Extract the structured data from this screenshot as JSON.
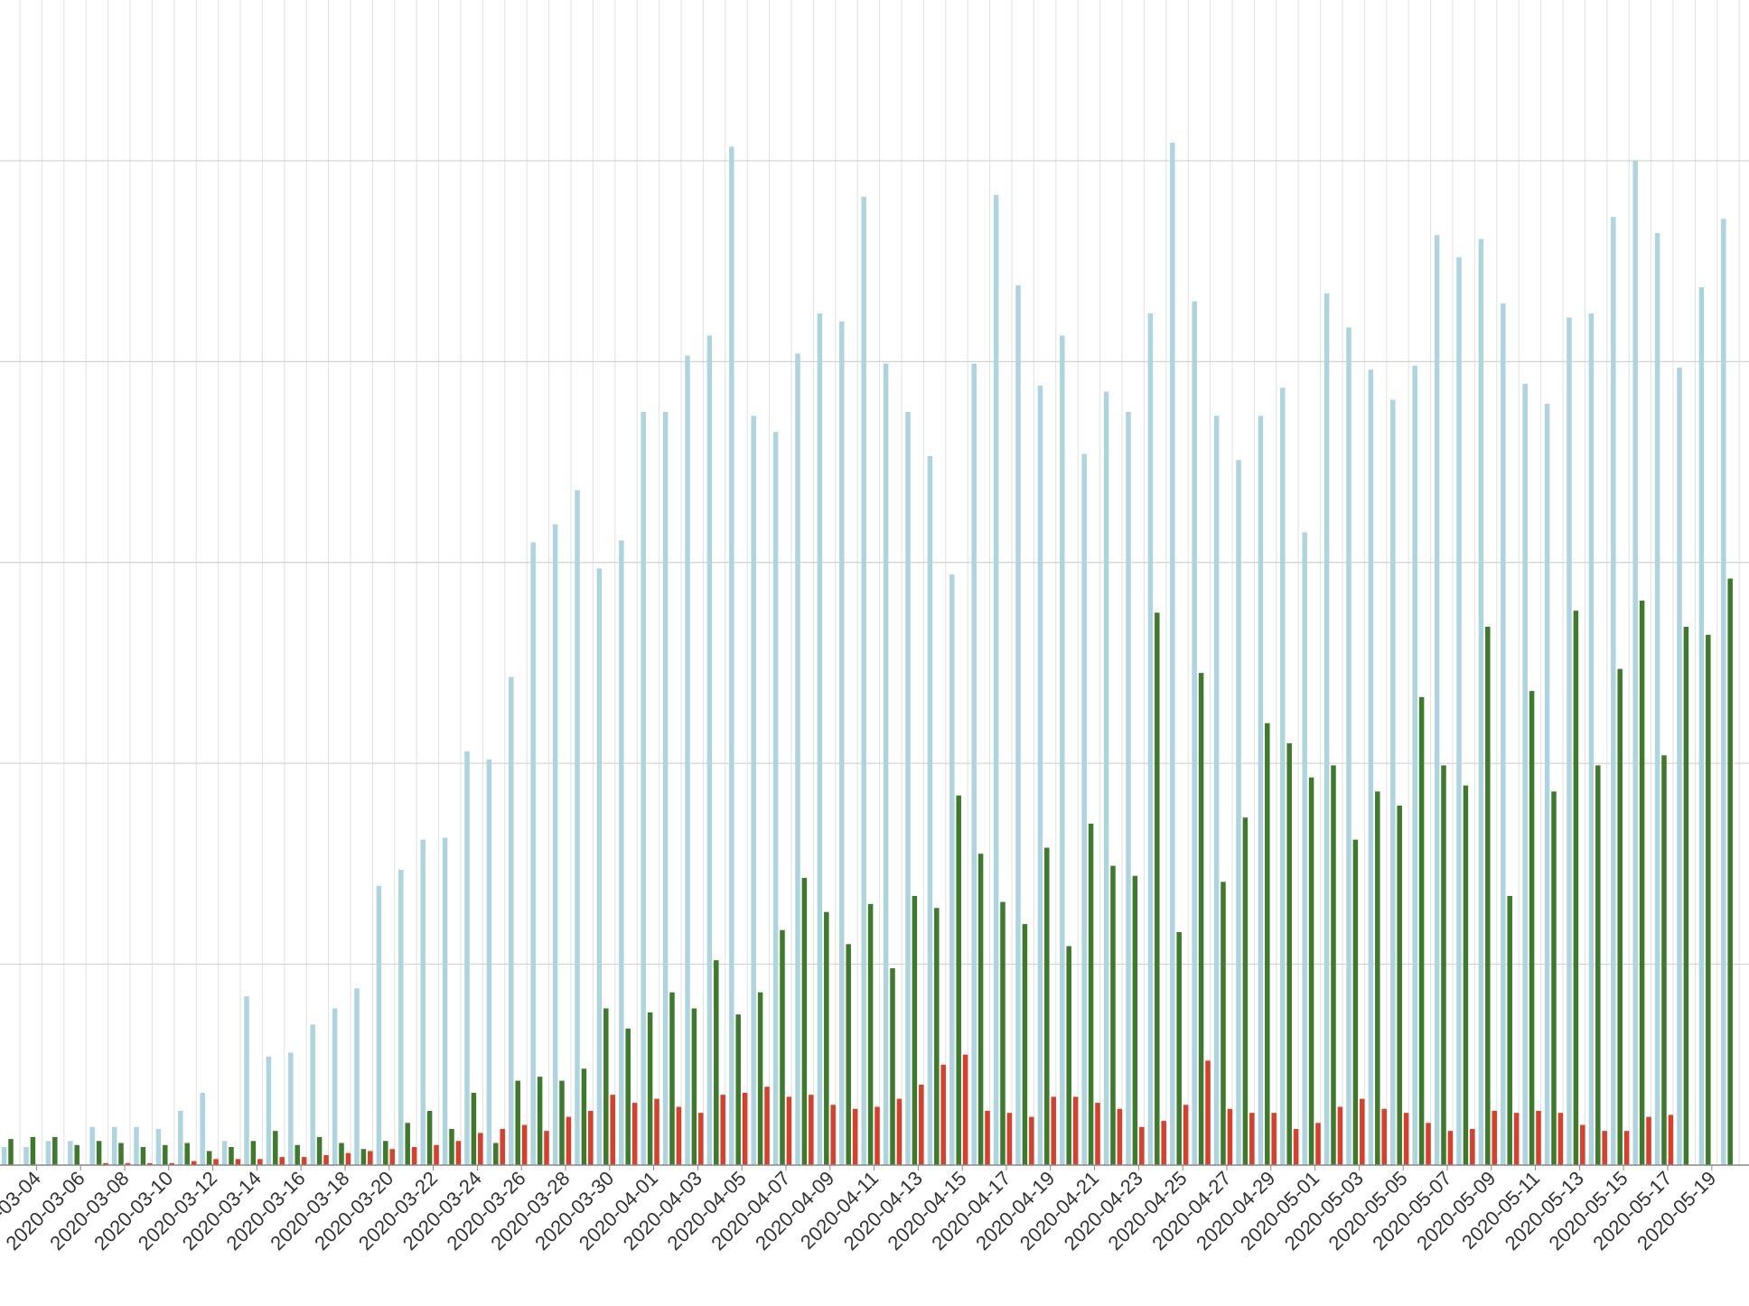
{
  "chart_data": {
    "type": "bar",
    "title": "",
    "xlabel": "",
    "ylabel": "",
    "grid": true,
    "legend": "none",
    "x": [
      "2020-03-03",
      "2020-03-04",
      "2020-03-05",
      "2020-03-06",
      "2020-03-07",
      "2020-03-08",
      "2020-03-09",
      "2020-03-10",
      "2020-03-11",
      "2020-03-12",
      "2020-03-13",
      "2020-03-14",
      "2020-03-15",
      "2020-03-16",
      "2020-03-17",
      "2020-03-18",
      "2020-03-19",
      "2020-03-20",
      "2020-03-21",
      "2020-03-22",
      "2020-03-23",
      "2020-03-24",
      "2020-03-25",
      "2020-03-26",
      "2020-03-27",
      "2020-03-28",
      "2020-03-29",
      "2020-03-30",
      "2020-03-31",
      "2020-04-01",
      "2020-04-02",
      "2020-04-03",
      "2020-04-04",
      "2020-04-05",
      "2020-04-06",
      "2020-04-07",
      "2020-04-08",
      "2020-04-09",
      "2020-04-10",
      "2020-04-11",
      "2020-04-12",
      "2020-04-13",
      "2020-04-14",
      "2020-04-15",
      "2020-04-16",
      "2020-04-17",
      "2020-04-18",
      "2020-04-19",
      "2020-04-20",
      "2020-04-21",
      "2020-04-22",
      "2020-04-23",
      "2020-04-24",
      "2020-04-25",
      "2020-04-26",
      "2020-04-27",
      "2020-04-28",
      "2020-04-29",
      "2020-04-30",
      "2020-05-01",
      "2020-05-02",
      "2020-05-03",
      "2020-05-04",
      "2020-05-05",
      "2020-05-06",
      "2020-05-07",
      "2020-05-08",
      "2020-05-09",
      "2020-05-10",
      "2020-05-11",
      "2020-05-12",
      "2020-05-13",
      "2020-05-14",
      "2020-05-15",
      "2020-05-16",
      "2020-05-17",
      "2020-05-18",
      "2020-05-19",
      "2020-05-20"
    ],
    "x_tick_labels": [
      "2020-03-04",
      "2020-03-06",
      "2020-03-08",
      "2020-03-10",
      "2020-03-12",
      "2020-03-14",
      "2020-03-16",
      "2020-03-18",
      "2020-03-20",
      "2020-03-22",
      "2020-03-24",
      "2020-03-26",
      "2020-03-28",
      "2020-03-30",
      "2020-04-01",
      "2020-04-03",
      "2020-04-05",
      "2020-04-07",
      "2020-04-09",
      "2020-04-11",
      "2020-04-13",
      "2020-04-15",
      "2020-04-17",
      "2020-04-19",
      "2020-04-21",
      "2020-04-23",
      "2020-04-25",
      "2020-04-27",
      "2020-04-29",
      "2020-05-01",
      "2020-05-03",
      "2020-05-05",
      "2020-05-07",
      "2020-05-09",
      "2020-05-11",
      "2020-05-13",
      "2020-05-15",
      "2020-05-17",
      "2020-05-19"
    ],
    "ylim": [
      0,
      5.8
    ],
    "y_gridlines": [
      1,
      2,
      3,
      4,
      5
    ],
    "series": [
      {
        "color": "#aed4e0",
        "values": [
          0.09,
          0.09,
          0.12,
          0.12,
          0.19,
          0.19,
          0.19,
          0.18,
          0.27,
          0.36,
          0.12,
          0.84,
          0.54,
          0.56,
          0.7,
          0.78,
          0.88,
          1.39,
          1.47,
          1.62,
          1.63,
          2.06,
          2.02,
          2.43,
          3.1,
          3.19,
          3.36,
          2.97,
          3.11,
          3.75,
          3.75,
          4.03,
          4.13,
          5.07,
          3.73,
          3.65,
          4.04,
          4.24,
          4.2,
          4.82,
          3.99,
          3.75,
          3.53,
          2.94,
          3.99,
          4.83,
          4.38,
          3.88,
          4.13,
          3.54,
          3.85,
          3.75,
          4.24,
          5.09,
          4.3,
          3.73,
          3.51,
          3.73,
          3.87,
          3.15,
          4.34,
          4.17,
          3.96,
          3.81,
          3.98,
          4.63,
          4.52,
          4.61,
          4.29,
          3.89,
          3.79,
          4.22,
          4.24,
          4.72,
          5.0,
          4.64,
          3.97,
          4.37,
          4.71
        ]
      },
      {
        "color": "#3d7a2a",
        "values": [
          0.13,
          0.14,
          0.14,
          0.1,
          0.12,
          0.11,
          0.09,
          0.1,
          0.11,
          0.07,
          0.09,
          0.12,
          0.17,
          0.1,
          0.14,
          0.11,
          0.08,
          0.12,
          0.21,
          0.27,
          0.18,
          0.36,
          0.11,
          0.42,
          0.44,
          0.42,
          0.48,
          0.78,
          0.68,
          0.76,
          0.86,
          0.78,
          1.02,
          0.75,
          0.86,
          1.17,
          1.43,
          1.26,
          1.1,
          1.3,
          0.98,
          1.34,
          1.28,
          1.84,
          1.55,
          1.31,
          1.2,
          1.58,
          1.09,
          1.7,
          1.49,
          1.44,
          2.75,
          1.16,
          2.45,
          1.41,
          1.73,
          2.2,
          2.1,
          1.93,
          1.99,
          1.62,
          1.86,
          1.79,
          2.33,
          1.99,
          1.89,
          2.68,
          1.34,
          2.36,
          1.86,
          2.76,
          1.99,
          2.47,
          2.81,
          2.04,
          2.68,
          2.64,
          2.92
        ]
      },
      {
        "color": "#d93f2c",
        "values": [
          0.0,
          0.0,
          0.0,
          0.0,
          0.01,
          0.01,
          0.01,
          0.01,
          0.02,
          0.03,
          0.03,
          0.03,
          0.04,
          0.04,
          0.05,
          0.06,
          0.07,
          0.08,
          0.09,
          0.1,
          0.12,
          0.16,
          0.18,
          0.2,
          0.17,
          0.24,
          0.27,
          0.35,
          0.31,
          0.33,
          0.29,
          0.26,
          0.35,
          0.36,
          0.39,
          0.34,
          0.35,
          0.3,
          0.28,
          0.29,
          0.33,
          0.4,
          0.5,
          0.55,
          0.27,
          0.26,
          0.24,
          0.34,
          0.34,
          0.31,
          0.28,
          0.19,
          0.22,
          0.3,
          0.52,
          0.28,
          0.26,
          0.26,
          0.18,
          0.21,
          0.29,
          0.33,
          0.28,
          0.26,
          0.21,
          0.17,
          0.18,
          0.27,
          0.26,
          0.27,
          0.26,
          0.2,
          0.17,
          0.17,
          0.24,
          0.25,
          0.0,
          0.0,
          0.0
        ]
      }
    ]
  }
}
